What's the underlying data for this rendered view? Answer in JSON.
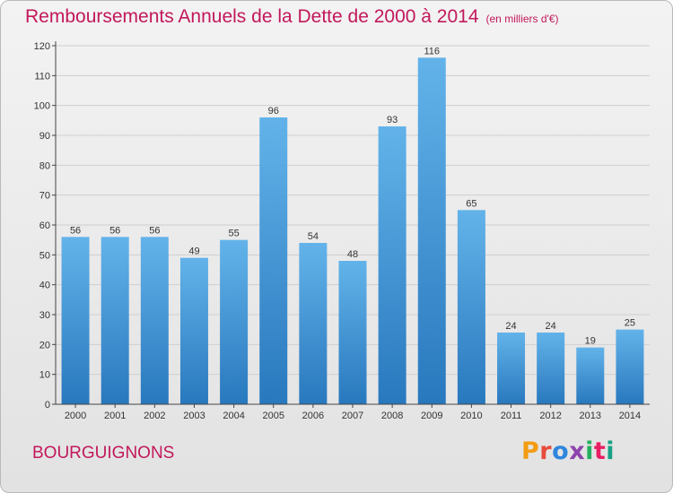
{
  "header": {
    "title": "Remboursements Annuels de la Dette de 2000 à 2014",
    "subtitle": "(en milliers d'€)"
  },
  "footer": {
    "commune": "BOURGUIGNONS",
    "brand": "Proxiti",
    "brand_colors": [
      "#f39c12",
      "#e74c3c",
      "#2e86de",
      "#8e44ad",
      "#27ae60",
      "#e91e63",
      "#16a085"
    ]
  },
  "colors": {
    "title": "#c2185b",
    "bar_top": "#63b3ea",
    "bar_bottom": "#2878be",
    "axis": "#444444",
    "grid": "#cfcfcf"
  },
  "chart_data": {
    "type": "bar",
    "title": "Remboursements Annuels de la Dette de 2000 à 2014",
    "subtitle": "(en milliers d'€)",
    "categories": [
      "2000",
      "2001",
      "2002",
      "2003",
      "2004",
      "2005",
      "2006",
      "2007",
      "2008",
      "2009",
      "2010",
      "2011",
      "2012",
      "2013",
      "2014"
    ],
    "values": [
      56,
      56,
      56,
      49,
      55,
      96,
      54,
      48,
      93,
      116,
      65,
      24,
      24,
      19,
      25
    ],
    "data_labels": [
      "56",
      "56",
      "56",
      "49",
      "55",
      "96",
      "54",
      "48",
      "93",
      "116",
      "65",
      "24",
      "24",
      "19",
      "25"
    ],
    "yticks": [
      "0",
      "10",
      "20",
      "30",
      "40",
      "50",
      "60",
      "70",
      "80",
      "90",
      "100",
      "110",
      "120"
    ],
    "ylim": [
      0,
      120
    ],
    "grid": true,
    "legend": "none"
  }
}
